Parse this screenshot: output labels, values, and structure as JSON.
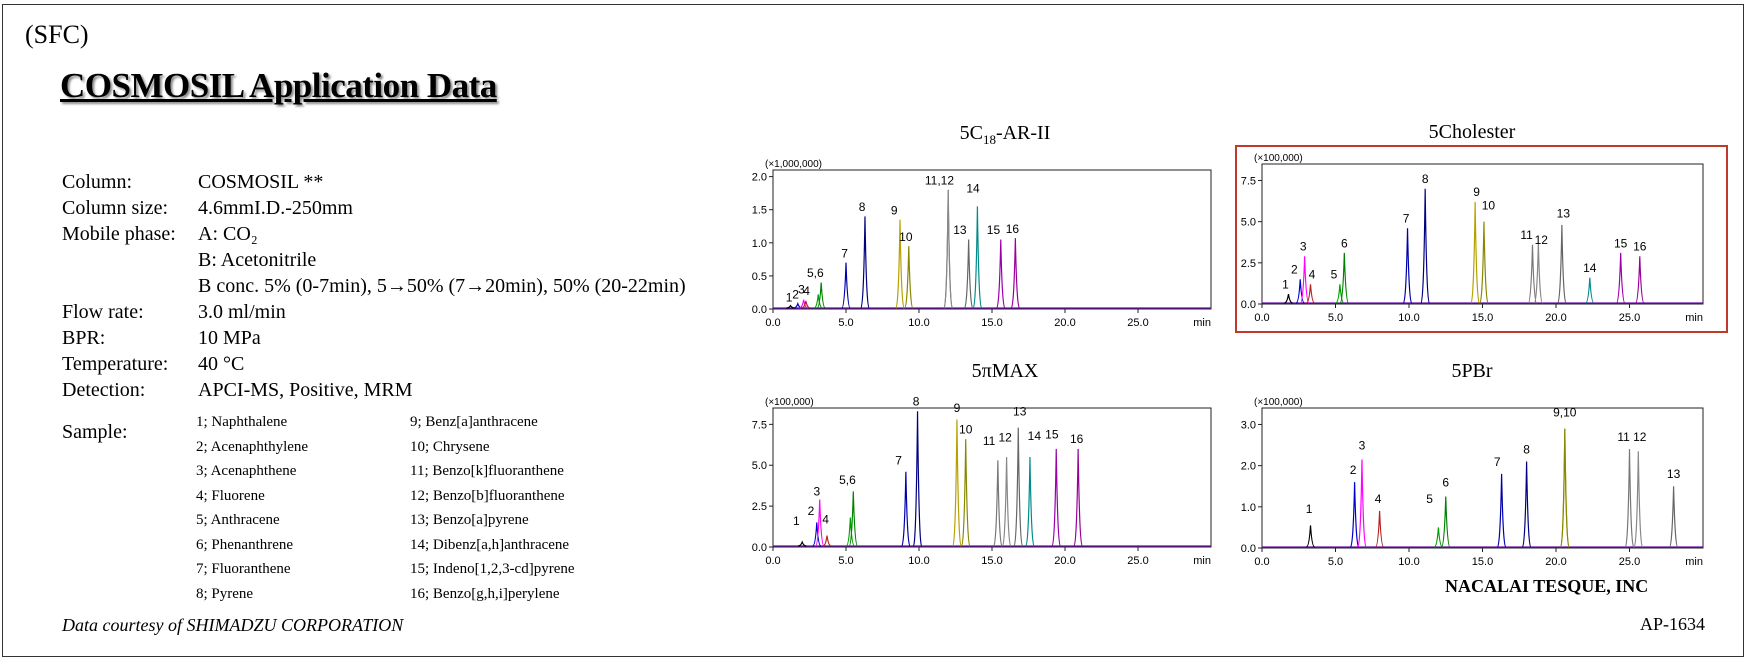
{
  "header": {
    "mode_tag": "(SFC)",
    "title": "COSMOSIL Application Data"
  },
  "conditions": [
    {
      "label": "Column:",
      "values": [
        "COSMOSIL  **"
      ]
    },
    {
      "label": "Column size:",
      "values": [
        "4.6mmI.D.-250mm"
      ]
    },
    {
      "label": "Mobile phase:",
      "values": [
        "A: CO₂",
        "B: Acetonitrile",
        "B conc. 5% (0-7min), 5→50% (7→20min), 50% (20-22min)"
      ]
    },
    {
      "label": "Flow rate:",
      "values": [
        "3.0 ml/min"
      ]
    },
    {
      "label": "BPR:",
      "values": [
        "10 MPa"
      ]
    },
    {
      "label": "Temperature:",
      "values": [
        "40 °C"
      ]
    },
    {
      "label": "Detection:",
      "values": [
        "APCI-MS, Positive, MRM"
      ]
    }
  ],
  "sample_label": "Sample:",
  "samples": [
    "1; Naphthalene",
    "2; Acenaphthylene",
    "3; Acenaphthene",
    "4; Fluorene",
    "5; Anthracene",
    "6; Phenanthrene",
    "7; Fluoranthene",
    "8; Pyrene",
    "9; Benz[a]anthracene",
    "10; Chrysene",
    "11; Benzo[k]fluoranthene",
    "12; Benzo[b]fluoranthene",
    "13; Benzo[a]pyrene",
    "14; Dibenz[a,h]anthracene",
    "15; Indeno[1,2,3-cd]pyrene",
    "16; Benzo[g,h,i]perylene"
  ],
  "footer": {
    "courtesy": "Data courtesy  of SHIMADZU CORPORATION",
    "brand": "NACALAI TESQUE, INC",
    "code": "AP-1634"
  },
  "panel_titles": {
    "p1_main": "5C",
    "p1_sub": "18",
    "p1_tail": "-AR-II",
    "p2": "5Cholester",
    "p3": "5πMAX",
    "p4": "5PBr"
  },
  "peak_colors": [
    "#000000",
    "#0000cc",
    "#ff00ff",
    "#b22222",
    "#00a000",
    "#008000",
    "#0000aa",
    "#000080",
    "#b8a000",
    "#888800",
    "#777777",
    "#888888",
    "#666666",
    "#008b8b",
    "#9900aa",
    "#990099"
  ],
  "chart_data": [
    {
      "type": "line",
      "title": "5C18-AR-II",
      "y_scale": "(×1,000,000)",
      "xlabel": "min",
      "xlim": [
        0,
        30
      ],
      "ylim": [
        0,
        2.1
      ],
      "yticks": [
        "0.0",
        "0.5",
        "1.0",
        "1.5",
        "2.0"
      ],
      "xticks": [
        "0.0",
        "5.0",
        "10.0",
        "15.0",
        "20.0",
        "25.0"
      ],
      "peaks": [
        {
          "label": "1",
          "rt": 1.2,
          "h": 0.05
        },
        {
          "label": "2",
          "rt": 1.7,
          "h": 0.08
        },
        {
          "label": "3",
          "rt": 2.1,
          "h": 0.14
        },
        {
          "label": "4",
          "rt": 2.25,
          "h": 0.12
        },
        {
          "label": "5",
          "rt": 3.1,
          "h": 0.22
        },
        {
          "label": "6",
          "rt": 3.3,
          "h": 0.4
        },
        {
          "label": "7",
          "rt": 5.0,
          "h": 0.7
        },
        {
          "label": "8",
          "rt": 6.3,
          "h": 1.4
        },
        {
          "label": "9",
          "rt": 8.7,
          "h": 1.35
        },
        {
          "label": "10",
          "rt": 9.3,
          "h": 0.95
        },
        {
          "label": "11",
          "rt": 12.0,
          "h": 1.8
        },
        {
          "label": "12",
          "rt": 12.0,
          "h": 1.8
        },
        {
          "label": "13",
          "rt": 13.4,
          "h": 1.05
        },
        {
          "label": "14",
          "rt": 14.0,
          "h": 1.55
        },
        {
          "label": "15",
          "rt": 15.6,
          "h": 1.05
        },
        {
          "label": "16",
          "rt": 16.6,
          "h": 1.07
        }
      ],
      "annotations": [
        {
          "text": "1",
          "rt": 1.1,
          "h": 0.05
        },
        {
          "text": "2",
          "rt": 1.55,
          "h": 0.1
        },
        {
          "text": "3",
          "rt": 1.95,
          "h": 0.17
        },
        {
          "text": "4",
          "rt": 2.3,
          "h": 0.15
        },
        {
          "text": "5,6",
          "rt": 2.9,
          "h": 0.42
        },
        {
          "text": "7",
          "rt": 4.9,
          "h": 0.72
        },
        {
          "text": "8",
          "rt": 6.1,
          "h": 1.42
        },
        {
          "text": "9",
          "rt": 8.3,
          "h": 1.37
        },
        {
          "text": "10",
          "rt": 9.1,
          "h": 0.97
        },
        {
          "text": "11,12",
          "rt": 11.4,
          "h": 1.82
        },
        {
          "text": "13",
          "rt": 12.8,
          "h": 1.07
        },
        {
          "text": "14",
          "rt": 13.7,
          "h": 1.7
        },
        {
          "text": "15",
          "rt": 15.1,
          "h": 1.07
        },
        {
          "text": "16",
          "rt": 16.4,
          "h": 1.09
        }
      ]
    },
    {
      "type": "line",
      "title": "5Cholester",
      "y_scale": "(×100,000)",
      "xlabel": "min",
      "xlim": [
        0,
        30
      ],
      "ylim": [
        0,
        8.5
      ],
      "yticks": [
        "0.0",
        "2.5",
        "5.0",
        "7.5"
      ],
      "xticks": [
        "0.0",
        "5.0",
        "10.0",
        "15.0",
        "20.0",
        "25.0"
      ],
      "peaks": [
        {
          "label": "1",
          "rt": 1.8,
          "h": 0.6
        },
        {
          "label": "2",
          "rt": 2.6,
          "h": 1.5
        },
        {
          "label": "3",
          "rt": 2.9,
          "h": 2.9
        },
        {
          "label": "4",
          "rt": 3.3,
          "h": 1.2
        },
        {
          "label": "5",
          "rt": 5.3,
          "h": 1.2
        },
        {
          "label": "6",
          "rt": 5.6,
          "h": 3.1
        },
        {
          "label": "7",
          "rt": 9.9,
          "h": 4.6
        },
        {
          "label": "8",
          "rt": 11.1,
          "h": 7.0
        },
        {
          "label": "9",
          "rt": 14.5,
          "h": 6.2
        },
        {
          "label": "10",
          "rt": 15.1,
          "h": 5.0
        },
        {
          "label": "11",
          "rt": 18.4,
          "h": 3.6
        },
        {
          "label": "12",
          "rt": 18.8,
          "h": 3.7
        },
        {
          "label": "13",
          "rt": 20.4,
          "h": 4.8
        },
        {
          "label": "14",
          "rt": 22.3,
          "h": 1.6
        },
        {
          "label": "15",
          "rt": 24.4,
          "h": 3.1
        },
        {
          "label": "16",
          "rt": 25.7,
          "h": 2.9
        }
      ],
      "annotations": [
        {
          "text": "1",
          "rt": 1.6,
          "h": 0.7
        },
        {
          "text": "2",
          "rt": 2.2,
          "h": 1.6
        },
        {
          "text": "3",
          "rt": 2.8,
          "h": 3.0
        },
        {
          "text": "4",
          "rt": 3.4,
          "h": 1.3
        },
        {
          "text": "5",
          "rt": 4.9,
          "h": 1.3
        },
        {
          "text": "6",
          "rt": 5.6,
          "h": 3.2
        },
        {
          "text": "7",
          "rt": 9.8,
          "h": 4.7
        },
        {
          "text": "8",
          "rt": 11.1,
          "h": 7.1
        },
        {
          "text": "9",
          "rt": 14.6,
          "h": 6.3
        },
        {
          "text": "10",
          "rt": 15.4,
          "h": 5.5
        },
        {
          "text": "11",
          "rt": 18.0,
          "h": 3.7
        },
        {
          "text": "12",
          "rt": 19.0,
          "h": 3.4
        },
        {
          "text": "13",
          "rt": 20.5,
          "h": 5.0
        },
        {
          "text": "14",
          "rt": 22.3,
          "h": 1.7
        },
        {
          "text": "15",
          "rt": 24.4,
          "h": 3.2
        },
        {
          "text": "16",
          "rt": 25.7,
          "h": 3.0
        }
      ]
    },
    {
      "type": "line",
      "title": "5πMAX",
      "y_scale": "(×100,000)",
      "xlabel": "min",
      "xlim": [
        0,
        30
      ],
      "ylim": [
        0,
        8.5
      ],
      "yticks": [
        "0.0",
        "2.5",
        "5.0",
        "7.5"
      ],
      "xticks": [
        "0.0",
        "5.0",
        "10.0",
        "15.0",
        "20.0",
        "25.0"
      ],
      "peaks": [
        {
          "label": "1",
          "rt": 2.0,
          "h": 0.3
        },
        {
          "label": "2",
          "rt": 3.0,
          "h": 1.5
        },
        {
          "label": "3",
          "rt": 3.2,
          "h": 2.9
        },
        {
          "label": "4",
          "rt": 3.7,
          "h": 0.7
        },
        {
          "label": "5",
          "rt": 5.3,
          "h": 1.8
        },
        {
          "label": "6",
          "rt": 5.5,
          "h": 3.4
        },
        {
          "label": "7",
          "rt": 9.1,
          "h": 4.6
        },
        {
          "label": "8",
          "rt": 9.9,
          "h": 8.3
        },
        {
          "label": "9",
          "rt": 12.6,
          "h": 7.8
        },
        {
          "label": "10",
          "rt": 13.2,
          "h": 6.6
        },
        {
          "label": "11",
          "rt": 15.4,
          "h": 5.3
        },
        {
          "label": "12",
          "rt": 16.0,
          "h": 5.5
        },
        {
          "label": "13",
          "rt": 16.8,
          "h": 7.3
        },
        {
          "label": "14",
          "rt": 17.6,
          "h": 5.5
        },
        {
          "label": "15",
          "rt": 19.4,
          "h": 6.0
        },
        {
          "label": "16",
          "rt": 20.9,
          "h": 6.0
        }
      ],
      "annotations": [
        {
          "text": "1",
          "rt": 1.6,
          "h": 1.1
        },
        {
          "text": "2",
          "rt": 2.6,
          "h": 1.7
        },
        {
          "text": "3",
          "rt": 3.0,
          "h": 2.9
        },
        {
          "text": "4",
          "rt": 3.6,
          "h": 1.2
        },
        {
          "text": "5,6",
          "rt": 5.1,
          "h": 3.6
        },
        {
          "text": "7",
          "rt": 8.6,
          "h": 4.8
        },
        {
          "text": "8",
          "rt": 9.8,
          "h": 8.4
        },
        {
          "text": "9",
          "rt": 12.6,
          "h": 8.0
        },
        {
          "text": "10",
          "rt": 13.2,
          "h": 6.7
        },
        {
          "text": "11",
          "rt": 14.8,
          "h": 6.0
        },
        {
          "text": "12",
          "rt": 15.9,
          "h": 6.2
        },
        {
          "text": "13",
          "rt": 16.9,
          "h": 7.8
        },
        {
          "text": "14",
          "rt": 17.9,
          "h": 6.3
        },
        {
          "text": "15",
          "rt": 19.1,
          "h": 6.4
        },
        {
          "text": "16",
          "rt": 20.8,
          "h": 6.1
        }
      ]
    },
    {
      "type": "line",
      "title": "5PBr",
      "y_scale": "(×100,000)",
      "xlabel": "min",
      "xlim": [
        0,
        30
      ],
      "ylim": [
        0,
        3.4
      ],
      "yticks": [
        "0.0",
        "1.0",
        "2.0",
        "3.0"
      ],
      "xticks": [
        "0.0",
        "5.0",
        "10.0",
        "15.0",
        "20.0",
        "25.0"
      ],
      "extra_xtick": "min",
      "peaks": [
        {
          "label": "1",
          "rt": 3.3,
          "h": 0.55
        },
        {
          "label": "2",
          "rt": 6.3,
          "h": 1.6
        },
        {
          "label": "3",
          "rt": 6.8,
          "h": 2.15
        },
        {
          "label": "4",
          "rt": 8.0,
          "h": 0.9
        },
        {
          "label": "5",
          "rt": 12.0,
          "h": 0.5
        },
        {
          "label": "6",
          "rt": 12.5,
          "h": 1.25
        },
        {
          "label": "7",
          "rt": 16.3,
          "h": 1.8
        },
        {
          "label": "8",
          "rt": 18.0,
          "h": 2.1
        },
        {
          "label": "9",
          "rt": 20.6,
          "h": 2.9
        },
        {
          "label": "10",
          "rt": 20.6,
          "h": 2.9
        },
        {
          "label": "11",
          "rt": 25.0,
          "h": 2.4
        },
        {
          "label": "12",
          "rt": 25.6,
          "h": 2.35
        },
        {
          "label": "13",
          "rt": 28.0,
          "h": 1.5
        }
      ],
      "annotations": [
        {
          "text": "1",
          "rt": 3.2,
          "h": 0.75
        },
        {
          "text": "2",
          "rt": 6.2,
          "h": 1.7
        },
        {
          "text": "3",
          "rt": 6.8,
          "h": 2.3
        },
        {
          "text": "4",
          "rt": 7.9,
          "h": 1.0
        },
        {
          "text": "5",
          "rt": 11.4,
          "h": 1.0
        },
        {
          "text": "6",
          "rt": 12.5,
          "h": 1.4
        },
        {
          "text": "7",
          "rt": 16.0,
          "h": 1.9
        },
        {
          "text": "8",
          "rt": 18.0,
          "h": 2.2
        },
        {
          "text": "9,10",
          "rt": 20.6,
          "h": 3.1
        },
        {
          "text": "11",
          "rt": 24.6,
          "h": 2.5
        },
        {
          "text": "12",
          "rt": 25.7,
          "h": 2.5
        },
        {
          "text": "13",
          "rt": 28.0,
          "h": 1.6
        }
      ]
    }
  ]
}
